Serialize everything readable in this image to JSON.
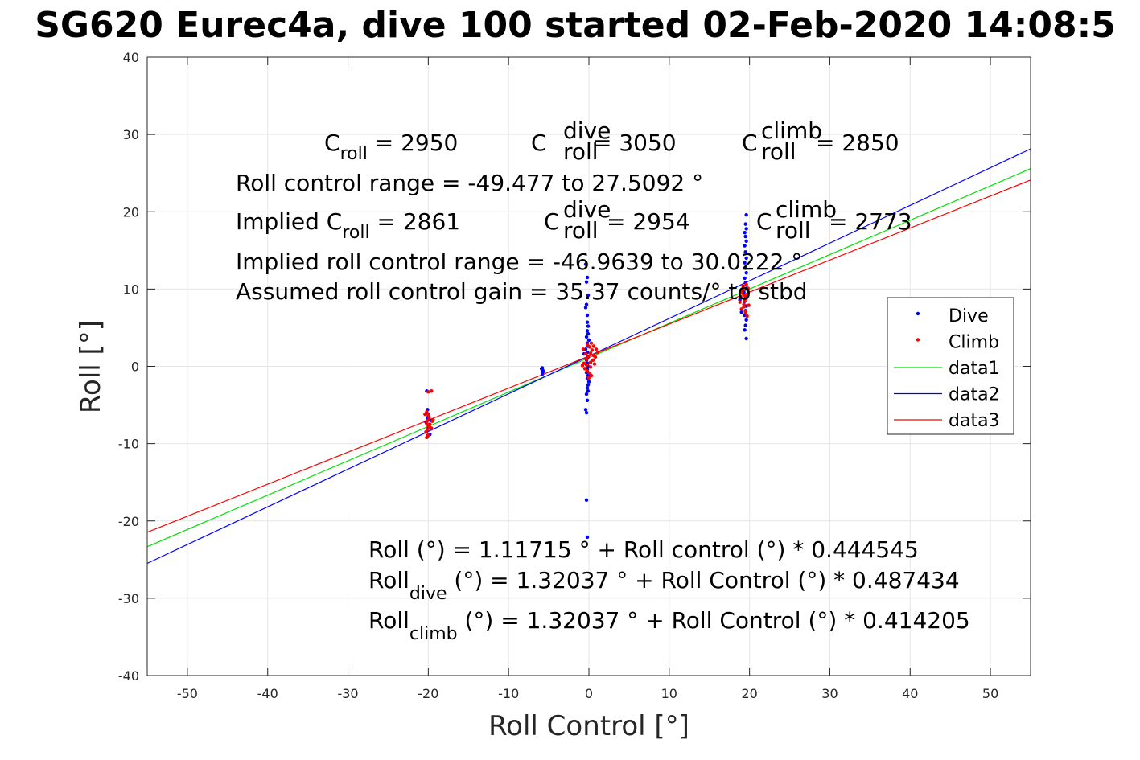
{
  "chart_data": {
    "type": "scatter",
    "title": "SG620 Eurec4a, dive 100 started 02-Feb-2020 14:08:5",
    "xlabel": "Roll Control [°]",
    "ylabel": "Roll [°]",
    "xlim": [
      -55,
      55
    ],
    "ylim": [
      -40,
      40
    ],
    "xticks": [
      -50,
      -40,
      -30,
      -20,
      -10,
      0,
      10,
      20,
      30,
      40,
      50
    ],
    "yticks": [
      -40,
      -30,
      -20,
      -10,
      0,
      10,
      20,
      30,
      40
    ],
    "xtick_labels": [
      "-50",
      "-40",
      "-30",
      "-20",
      "-10",
      "0",
      "10",
      "20",
      "30",
      "40",
      "50"
    ],
    "ytick_labels": [
      "-40",
      "-30",
      "-20",
      "-10",
      "0",
      "10",
      "20",
      "30",
      "40"
    ],
    "grid": true,
    "legend_position": "right",
    "series": [
      {
        "name": "Dive",
        "kind": "points",
        "color": "#0000ff",
        "points": [
          [
            -20.2,
            -3.2
          ],
          [
            -20.1,
            -5.6
          ],
          [
            -20.0,
            -6.2
          ],
          [
            -20.1,
            -6.8
          ],
          [
            -20.3,
            -7.2
          ],
          [
            -19.9,
            -7.6
          ],
          [
            -20.0,
            -8.0
          ],
          [
            -20.2,
            -8.4
          ],
          [
            -19.8,
            -8.8
          ],
          [
            -20.1,
            -9.0
          ],
          [
            -19.7,
            -7.0
          ],
          [
            -20.0,
            -6.5
          ],
          [
            -5.8,
            -0.2
          ],
          [
            -5.8,
            -0.4
          ],
          [
            -5.7,
            -0.6
          ],
          [
            -5.8,
            -0.8
          ],
          [
            -5.8,
            -1.0
          ],
          [
            -5.9,
            -0.3
          ],
          [
            -5.7,
            -0.7
          ],
          [
            -0.4,
            13.2
          ],
          [
            -0.2,
            11.5
          ],
          [
            -0.3,
            10.9
          ],
          [
            -0.1,
            9.2
          ],
          [
            -0.3,
            8.0
          ],
          [
            -0.4,
            7.6
          ],
          [
            -0.2,
            6.6
          ],
          [
            -0.2,
            5.7
          ],
          [
            -0.1,
            5.2
          ],
          [
            -0.2,
            4.6
          ],
          [
            -0.1,
            4.2
          ],
          [
            -0.3,
            3.8
          ],
          [
            0.0,
            3.4
          ],
          [
            -0.2,
            3.0
          ],
          [
            -0.1,
            2.6
          ],
          [
            -0.4,
            2.2
          ],
          [
            -0.2,
            1.8
          ],
          [
            -0.6,
            1.6
          ],
          [
            -0.1,
            1.2
          ],
          [
            -0.3,
            0.8
          ],
          [
            -0.2,
            0.4
          ],
          [
            -0.1,
            0.0
          ],
          [
            -0.2,
            -0.4
          ],
          [
            -0.3,
            -0.8
          ],
          [
            -0.1,
            -1.2
          ],
          [
            -0.2,
            -1.6
          ],
          [
            0.0,
            -2.0
          ],
          [
            -0.1,
            -2.4
          ],
          [
            -0.2,
            -2.8
          ],
          [
            -0.1,
            -3.2
          ],
          [
            -0.3,
            -3.6
          ],
          [
            -0.2,
            -4.4
          ],
          [
            -0.4,
            -5.6
          ],
          [
            -0.3,
            -6.0
          ],
          [
            -0.3,
            -17.3
          ],
          [
            -0.2,
            -22.1
          ],
          [
            19.6,
            19.6
          ],
          [
            19.5,
            18.4
          ],
          [
            19.6,
            17.8
          ],
          [
            19.4,
            17.3
          ],
          [
            19.5,
            16.8
          ],
          [
            19.6,
            16.2
          ],
          [
            19.4,
            15.6
          ],
          [
            19.5,
            14.8
          ],
          [
            19.6,
            14.0
          ],
          [
            19.4,
            13.4
          ],
          [
            19.5,
            12.7
          ],
          [
            19.6,
            12.1
          ],
          [
            19.4,
            11.4
          ],
          [
            19.5,
            10.8
          ],
          [
            19.6,
            10.1
          ],
          [
            19.3,
            9.6
          ],
          [
            19.5,
            9.0
          ],
          [
            19.4,
            8.4
          ],
          [
            19.6,
            7.8
          ],
          [
            19.5,
            7.2
          ],
          [
            19.4,
            6.6
          ],
          [
            19.6,
            6.0
          ],
          [
            19.5,
            5.3
          ],
          [
            19.4,
            4.7
          ],
          [
            19.6,
            3.6
          ],
          [
            19.0,
            7.0
          ],
          [
            18.8,
            8.6
          ]
        ]
      },
      {
        "name": "Climb",
        "kind": "points",
        "color": "#ff0000",
        "points": [
          [
            -20.0,
            -3.3
          ],
          [
            -19.6,
            -3.2
          ],
          [
            -20.2,
            -5.9
          ],
          [
            -20.0,
            -6.3
          ],
          [
            -19.9,
            -6.6
          ],
          [
            -20.1,
            -7.0
          ],
          [
            -19.5,
            -7.1
          ],
          [
            -20.2,
            -7.4
          ],
          [
            -20.0,
            -7.7
          ],
          [
            -19.8,
            -7.9
          ],
          [
            -20.1,
            -8.2
          ],
          [
            -20.3,
            -8.5
          ],
          [
            -20.0,
            -8.9
          ],
          [
            -20.2,
            -9.2
          ],
          [
            -19.4,
            -6.9
          ],
          [
            -19.8,
            -7.5
          ],
          [
            -20.4,
            -6.2
          ],
          [
            -19.6,
            -8.0
          ],
          [
            -0.8,
            0.1
          ],
          [
            -0.6,
            0.4
          ],
          [
            -0.3,
            0.9
          ],
          [
            -0.1,
            1.3
          ],
          [
            0.2,
            1.7
          ],
          [
            0.4,
            2.1
          ],
          [
            0.1,
            2.5
          ],
          [
            -0.2,
            2.8
          ],
          [
            0.3,
            3.0
          ],
          [
            0.6,
            2.6
          ],
          [
            0.9,
            2.2
          ],
          [
            1.1,
            1.8
          ],
          [
            0.8,
            1.2
          ],
          [
            0.5,
            0.8
          ],
          [
            0.2,
            0.5
          ],
          [
            -0.3,
            0.2
          ],
          [
            -0.5,
            -0.3
          ],
          [
            -0.2,
            -0.6
          ],
          [
            0.1,
            -0.9
          ],
          [
            0.3,
            -1.2
          ],
          [
            0.0,
            -1.5
          ],
          [
            -0.4,
            1.6
          ],
          [
            0.6,
            1.4
          ],
          [
            -0.7,
            2.2
          ],
          [
            0.2,
            -0.1
          ],
          [
            0.7,
            0.3
          ],
          [
            18.8,
            8.3
          ],
          [
            19.0,
            9.6
          ],
          [
            19.2,
            10.4
          ],
          [
            19.4,
            9.2
          ],
          [
            19.6,
            8.8
          ],
          [
            19.8,
            10.1
          ],
          [
            19.3,
            8.0
          ],
          [
            19.0,
            7.4
          ],
          [
            19.5,
            7.1
          ],
          [
            19.7,
            6.5
          ],
          [
            19.9,
            7.9
          ],
          [
            19.2,
            9.9
          ],
          [
            19.6,
            10.6
          ],
          [
            19.4,
            8.5
          ],
          [
            18.9,
            9.0
          ],
          [
            19.8,
            9.4
          ],
          [
            19.5,
            6.9
          ],
          [
            19.3,
            7.7
          ]
        ]
      },
      {
        "name": "data1",
        "kind": "line",
        "color": "#00e000",
        "intercept": 1.11715,
        "slope": 0.444545
      },
      {
        "name": "data2",
        "kind": "line",
        "color": "#0000ff",
        "intercept": 1.32037,
        "slope": 0.487434
      },
      {
        "name": "data3",
        "kind": "line",
        "color": "#ff0000",
        "intercept": 1.32037,
        "slope": 0.414205
      }
    ]
  },
  "annotations": {
    "c_roll": {
      "main": "C",
      "sub": "roll",
      "rest": " = 2950"
    },
    "c_roll_dive": {
      "main": "C",
      "sup": "dive",
      "sub": "roll",
      "rest": " = 3050"
    },
    "c_roll_climb": {
      "main": "C",
      "sup": "climb",
      "sub": "roll",
      "rest": " = 2850"
    },
    "roll_control_range": "Roll control range = -49.477 to 27.5092 °",
    "implied_prefix": "Implied C",
    "implied_sub": "roll",
    "implied_rest": " = 2861",
    "implied_dive": {
      "main": "C",
      "sup": "dive",
      "sub": "roll",
      "rest": " = 2954"
    },
    "implied_climb": {
      "main": "C",
      "sup": "climb",
      "sub": "roll",
      "rest": " = 2773"
    },
    "implied_range": "Implied roll control range = -46.9639 to 30.0222 °",
    "gain": "Assumed roll control gain = 35.37 counts/° to stbd",
    "fit_all": "Roll (°) = 1.11715 ° + Roll control (°) * 0.444545",
    "fit_dive": {
      "main": "Roll",
      "sub": "dive",
      "rest": " (°) = 1.32037 ° + Roll Control (°) * 0.487434"
    },
    "fit_climb": {
      "main": "Roll",
      "sub": "climb",
      "rest": " (°) = 1.32037 ° + Roll Control (°) * 0.414205"
    }
  }
}
